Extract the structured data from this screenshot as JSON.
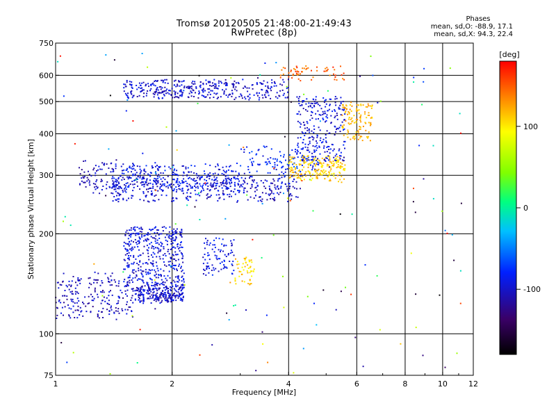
{
  "header": {
    "title": "Tromsø 20120505 21:48:00-21:49:43",
    "subtitle": "RwPretec (8p)",
    "phases_title": "Phases",
    "phases_line1": "mean, sd,O: -88.9, 17.1",
    "phases_line2": "mean, sd,X:  94.3, 22.4"
  },
  "chart_data": {
    "type": "scatter",
    "xlabel": "Frequency [MHz]",
    "ylabel": "Stationary phase Virtual Height [km]",
    "x_scale": "log",
    "y_scale": "log",
    "xlim": [
      1,
      12
    ],
    "ylim": [
      75,
      750
    ],
    "x_ticks": [
      1,
      2,
      4,
      6,
      8,
      10,
      12
    ],
    "y_ticks": [
      75,
      100,
      200,
      300,
      400,
      500,
      600,
      750
    ],
    "x_gridlines": [
      2,
      4,
      6,
      8,
      10
    ],
    "y_gridlines": [
      100,
      200,
      300,
      400,
      500,
      600
    ],
    "grid": true,
    "colorbar": {
      "label": "[deg]",
      "range": [
        -180,
        180
      ],
      "ticks": [
        100,
        0,
        -100
      ],
      "colormap": [
        "#000000",
        "#3a0066",
        "#0020ff",
        "#00c0ff",
        "#00ff80",
        "#80ff00",
        "#ffff00",
        "#ff8000",
        "#ff0000"
      ]
    },
    "series": [
      {
        "x_range": [
          1.0,
          1.6
        ],
        "y": [
          112,
          150
        ],
        "phase": -105,
        "count": 220,
        "spread": 0.06
      },
      {
        "x_range": [
          1.6,
          2.15
        ],
        "y": [
          125,
          140
        ],
        "phase": -100,
        "count": 260,
        "spread": 0.03
      },
      {
        "x_range": [
          1.5,
          2.15
        ],
        "y": [
          140,
          210
        ],
        "phase": -95,
        "count": 420,
        "spread": 0.0
      },
      {
        "x_range": [
          2.4,
          2.9
        ],
        "y": [
          150,
          195
        ],
        "phase": -92,
        "count": 90,
        "spread": 0.0
      },
      {
        "x_range": [
          1.4,
          4.3
        ],
        "y": [
          250,
          300
        ],
        "phase": -100,
        "count": 360,
        "spread": 0.02
      },
      {
        "x_range": [
          1.4,
          3.0
        ],
        "y": [
          270,
          320
        ],
        "phase": -90,
        "count": 320,
        "spread": 0.05
      },
      {
        "x_range": [
          1.15,
          1.45
        ],
        "y": [
          270,
          330
        ],
        "phase": -105,
        "count": 80,
        "spread": 0.05
      },
      {
        "x_range": [
          3.0,
          4.8
        ],
        "y": [
          300,
          360
        ],
        "phase": -80,
        "count": 120,
        "spread": 0.05
      },
      {
        "x_range": [
          4.0,
          5.6
        ],
        "y": [
          290,
          340
        ],
        "phase": 110,
        "count": 200,
        "spread": 0.04
      },
      {
        "x_range": [
          4.2,
          5.6
        ],
        "y": [
          330,
          520
        ],
        "phase": -95,
        "count": 260,
        "spread": 0.0
      },
      {
        "x_range": [
          5.5,
          6.6
        ],
        "y": [
          380,
          500
        ],
        "phase": 120,
        "count": 120,
        "spread": 0.0
      },
      {
        "x_range": [
          1.5,
          4.0
        ],
        "y": [
          510,
          580
        ],
        "phase": -100,
        "count": 380,
        "spread": 0.02
      },
      {
        "x_range": [
          3.8,
          5.6
        ],
        "y": [
          580,
          640
        ],
        "phase": 150,
        "count": 60,
        "spread": 0.02
      },
      {
        "x_range": [
          2.9,
          3.3
        ],
        "y": [
          140,
          170
        ],
        "phase": 110,
        "count": 50,
        "spread": 0.0
      },
      {
        "x_range": [
          1.0,
          11.5
        ],
        "y": [
          75,
          700
        ],
        "phase": 0,
        "count": 150,
        "spread": 0.0,
        "random_phase": true
      }
    ]
  }
}
